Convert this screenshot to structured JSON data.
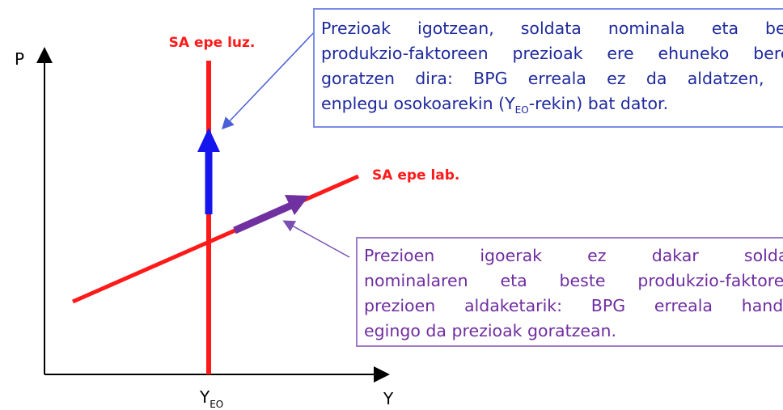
{
  "axes": {
    "y_label": "P",
    "x_label": "Y",
    "x_mark": {
      "main": "Y",
      "sub": "EO"
    }
  },
  "curves": {
    "long_run": "SA epe luz.",
    "short_run": "SA epe lab."
  },
  "box_long": {
    "lines": [
      "Prezioak igotzean, soldata nominala eta beste",
      "produkzio-faktoreen prezioak ere ehuneko berean",
      "goratzen dira: BPG erreala ez da aldatzen, eta"
    ],
    "last": {
      "before": "enplegu osokoarekin (Y",
      "sub": "EO",
      "after": "-rekin) bat dator."
    }
  },
  "box_short": {
    "lines": [
      "Prezioen igoerak ez dakar soldata",
      "nominalaren eta beste produkzio-faktoreen",
      "prezioen aldaketarik: BPG erreala handitu"
    ],
    "last": "egingo da prezioak goratzean."
  }
}
